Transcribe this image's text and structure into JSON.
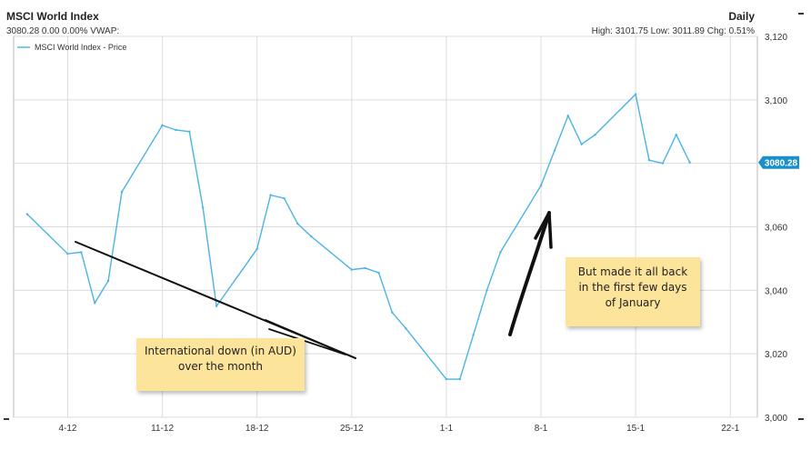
{
  "header": {
    "title": "MSCI World Index",
    "subline": "3080.28 0.00 0.00%  VWAP:",
    "frequency": "Daily",
    "stats": "High: 3101.75 Low: 3011.89 Chg: 0.51%"
  },
  "colors": {
    "series": "#4ab4e6",
    "last_tag": "#1a8fc9",
    "grid": "#dcdcdc",
    "note_bg": "#fce49a",
    "arrow": "#111111"
  },
  "chart_data": {
    "type": "line",
    "series": [
      {
        "name": "MSCI World Index - Price",
        "x": [
          "2017-12-01",
          "2017-12-04",
          "2017-12-05",
          "2017-12-06",
          "2017-12-07",
          "2017-12-08",
          "2017-12-11",
          "2017-12-12",
          "2017-12-13",
          "2017-12-14",
          "2017-12-15",
          "2017-12-18",
          "2017-12-19",
          "2017-12-20",
          "2017-12-21",
          "2017-12-22",
          "2017-12-25",
          "2017-12-26",
          "2017-12-27",
          "2017-12-28",
          "2017-12-29",
          "2018-01-01",
          "2018-01-02",
          "2018-01-03",
          "2018-01-04",
          "2018-01-05",
          "2018-01-08",
          "2018-01-09",
          "2018-01-10",
          "2018-01-11",
          "2018-01-12",
          "2018-01-15",
          "2018-01-16",
          "2018-01-17",
          "2018-01-18",
          "2018-01-19"
        ],
        "values": [
          3064.0,
          3051.5,
          3052.0,
          3036.0,
          3043.0,
          3071.0,
          3092.0,
          3090.5,
          3090.0,
          3066.0,
          3035.0,
          3053.0,
          3070.0,
          3069.0,
          3061.0,
          3057.0,
          3046.5,
          3047.0,
          3045.5,
          3033.0,
          3028.0,
          3012.0,
          3012.0,
          3026.0,
          3040.0,
          3052.0,
          3073.0,
          3084.0,
          3095.0,
          3086.0,
          3089.0,
          3101.75,
          3081.0,
          3080.0,
          3089.0,
          3080.28
        ]
      }
    ],
    "x_ticks": [
      "4-12",
      "11-12",
      "18-12",
      "25-12",
      "1-1",
      "8-1",
      "15-1",
      "22-1"
    ],
    "y_ticks": [
      "3,000",
      "3,020",
      "3,040",
      "3,060",
      "3,080",
      "3,100",
      "3,120"
    ],
    "ylim": [
      3000,
      3120
    ],
    "last_value_label": "3080.28",
    "legend": "top-left",
    "grid": true
  },
  "annotations": {
    "note_down": {
      "lines": [
        "International down (in AUD)",
        "over the month"
      ]
    },
    "note_up": {
      "lines": [
        "But made it all back",
        "in the first few days",
        "of January"
      ]
    }
  }
}
